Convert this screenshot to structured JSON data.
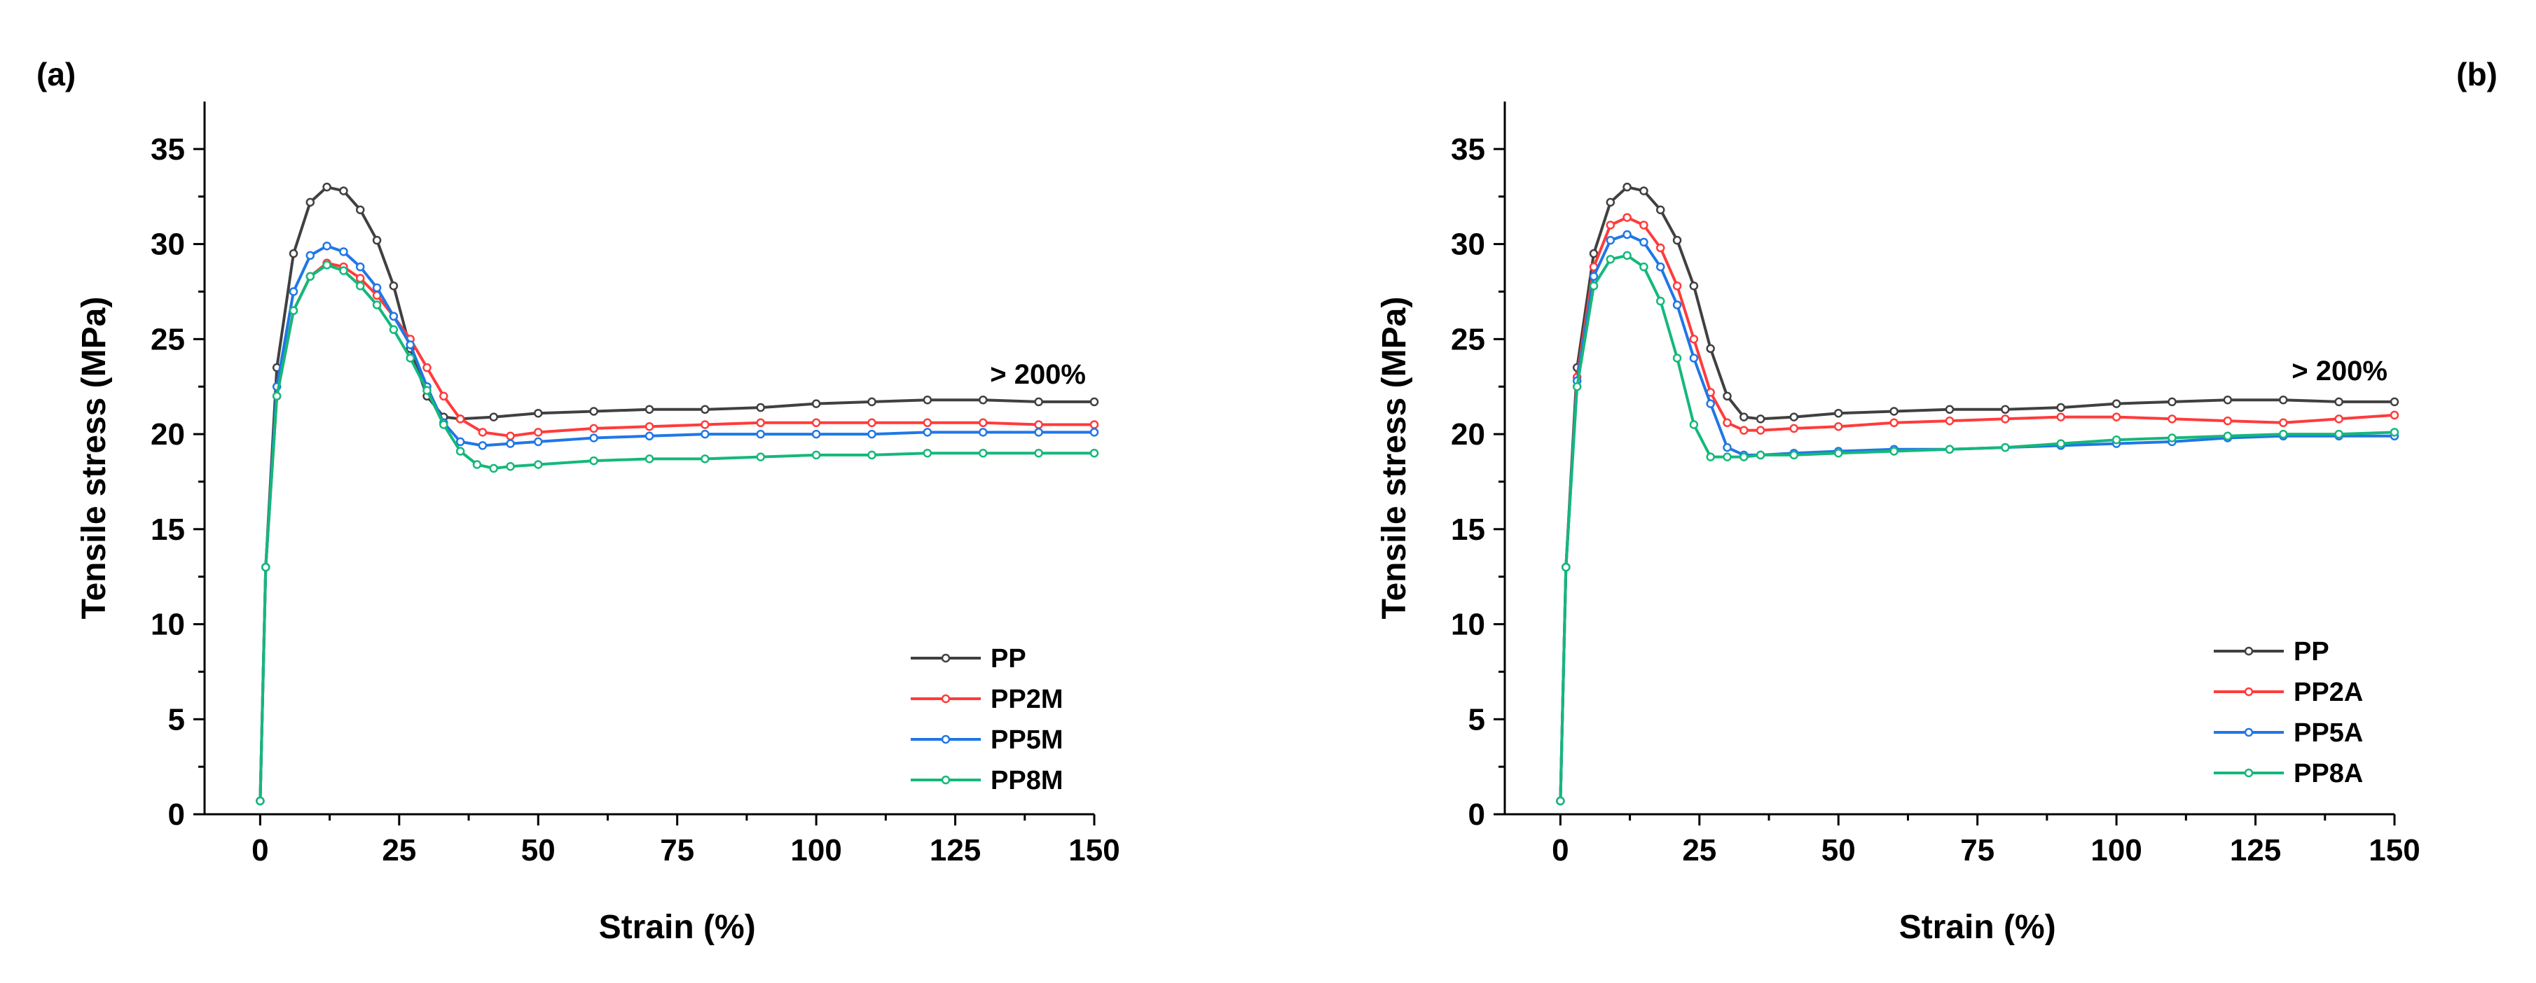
{
  "chart_data": [
    {
      "panel_label": "(a)",
      "type": "line",
      "title": "",
      "xlabel": "Strain (%)",
      "ylabel": "Tensile stress (MPa)",
      "xlim": [
        -10,
        150
      ],
      "ylim": [
        0,
        37.5
      ],
      "xticks": [
        0,
        25,
        50,
        75,
        100,
        125,
        150
      ],
      "yticks": [
        0,
        5,
        10,
        15,
        20,
        25,
        30,
        35
      ],
      "annotation": "> 200%",
      "legend_position": "bottom-right",
      "series": [
        {
          "name": "PP",
          "color": "#404040",
          "x": [
            0,
            1,
            3,
            6,
            9,
            12,
            15,
            18,
            21,
            24,
            27,
            30,
            33,
            36,
            42,
            50,
            60,
            70,
            80,
            90,
            100,
            110,
            120,
            130,
            140,
            150
          ],
          "y": [
            0.7,
            13,
            23.5,
            29.5,
            32.2,
            33,
            32.8,
            31.8,
            30.2,
            27.8,
            24.5,
            22,
            20.9,
            20.8,
            20.9,
            21.1,
            21.2,
            21.3,
            21.3,
            21.4,
            21.6,
            21.7,
            21.8,
            21.8,
            21.7,
            21.7
          ]
        },
        {
          "name": "PP2M",
          "color": "#ff3b3b",
          "x": [
            0,
            1,
            3,
            6,
            9,
            12,
            15,
            18,
            21,
            24,
            27,
            30,
            33,
            36,
            40,
            45,
            50,
            60,
            70,
            80,
            90,
            100,
            110,
            120,
            130,
            140,
            150
          ],
          "y": [
            0.7,
            13,
            22,
            26.5,
            28.3,
            29,
            28.8,
            28.2,
            27.3,
            26.2,
            25,
            23.5,
            22,
            20.8,
            20.1,
            19.9,
            20.1,
            20.3,
            20.4,
            20.5,
            20.6,
            20.6,
            20.6,
            20.6,
            20.6,
            20.5,
            20.5
          ]
        },
        {
          "name": "PP5M",
          "color": "#1f77e6",
          "x": [
            0,
            1,
            3,
            6,
            9,
            12,
            15,
            18,
            21,
            24,
            27,
            30,
            33,
            36,
            40,
            45,
            50,
            60,
            70,
            80,
            90,
            100,
            110,
            120,
            130,
            140,
            150
          ],
          "y": [
            0.7,
            13,
            22.5,
            27.5,
            29.4,
            29.9,
            29.6,
            28.8,
            27.7,
            26.2,
            24.7,
            22.5,
            20.6,
            19.6,
            19.4,
            19.5,
            19.6,
            19.8,
            19.9,
            20,
            20,
            20,
            20,
            20.1,
            20.1,
            20.1,
            20.1
          ]
        },
        {
          "name": "PP8M",
          "color": "#14b87a",
          "x": [
            0,
            1,
            3,
            6,
            9,
            12,
            15,
            18,
            21,
            24,
            27,
            30,
            33,
            36,
            39,
            42,
            45,
            50,
            60,
            70,
            80,
            90,
            100,
            110,
            120,
            130,
            140,
            150
          ],
          "y": [
            0.7,
            13,
            22,
            26.5,
            28.3,
            28.9,
            28.6,
            27.8,
            26.8,
            25.5,
            24,
            22.3,
            20.5,
            19.1,
            18.4,
            18.2,
            18.3,
            18.4,
            18.6,
            18.7,
            18.7,
            18.8,
            18.9,
            18.9,
            19,
            19,
            19,
            19
          ]
        }
      ]
    },
    {
      "panel_label": "(b)",
      "type": "line",
      "title": "",
      "xlabel": "Strain (%)",
      "ylabel": "Tensile stress (MPa)",
      "xlim": [
        -10,
        150
      ],
      "ylim": [
        0,
        37.5
      ],
      "xticks": [
        0,
        25,
        50,
        75,
        100,
        125,
        150
      ],
      "yticks": [
        0,
        5,
        10,
        15,
        20,
        25,
        30,
        35
      ],
      "annotation": "> 200%",
      "legend_position": "bottom-right",
      "series": [
        {
          "name": "PP",
          "color": "#404040",
          "x": [
            0,
            1,
            3,
            6,
            9,
            12,
            15,
            18,
            21,
            24,
            27,
            30,
            33,
            36,
            42,
            50,
            60,
            70,
            80,
            90,
            100,
            110,
            120,
            130,
            140,
            150
          ],
          "y": [
            0.7,
            13,
            23.5,
            29.5,
            32.2,
            33,
            32.8,
            31.8,
            30.2,
            27.8,
            24.5,
            22,
            20.9,
            20.8,
            20.9,
            21.1,
            21.2,
            21.3,
            21.3,
            21.4,
            21.6,
            21.7,
            21.8,
            21.8,
            21.7,
            21.7
          ]
        },
        {
          "name": "PP2A",
          "color": "#ff3b3b",
          "x": [
            0,
            1,
            3,
            6,
            9,
            12,
            15,
            18,
            21,
            24,
            27,
            30,
            33,
            36,
            42,
            50,
            60,
            70,
            80,
            90,
            100,
            110,
            120,
            130,
            140,
            150
          ],
          "y": [
            0.7,
            13,
            23,
            28.8,
            31,
            31.4,
            31,
            29.8,
            27.8,
            25,
            22.2,
            20.6,
            20.2,
            20.2,
            20.3,
            20.4,
            20.6,
            20.7,
            20.8,
            20.9,
            20.9,
            20.8,
            20.7,
            20.6,
            20.8,
            21
          ]
        },
        {
          "name": "PP5A",
          "color": "#1f77e6",
          "x": [
            0,
            1,
            3,
            6,
            9,
            12,
            15,
            18,
            21,
            24,
            27,
            30,
            33,
            36,
            42,
            50,
            60,
            70,
            80,
            90,
            100,
            110,
            120,
            130,
            140,
            150
          ],
          "y": [
            0.7,
            13,
            22.8,
            28.3,
            30.2,
            30.5,
            30.1,
            28.8,
            26.8,
            24,
            21.6,
            19.3,
            18.9,
            18.9,
            19,
            19.1,
            19.2,
            19.2,
            19.3,
            19.4,
            19.5,
            19.6,
            19.8,
            19.9,
            19.9,
            19.9
          ]
        },
        {
          "name": "PP8A",
          "color": "#14b87a",
          "x": [
            0,
            1,
            3,
            6,
            9,
            12,
            15,
            18,
            21,
            24,
            27,
            30,
            33,
            36,
            42,
            50,
            60,
            70,
            80,
            90,
            100,
            110,
            120,
            130,
            140,
            150
          ],
          "y": [
            0.7,
            13,
            22.5,
            27.8,
            29.2,
            29.4,
            28.8,
            27,
            24,
            20.5,
            18.8,
            18.8,
            18.8,
            18.9,
            18.9,
            19,
            19.1,
            19.2,
            19.3,
            19.5,
            19.7,
            19.8,
            19.9,
            20,
            20,
            20.1
          ]
        }
      ]
    }
  ]
}
